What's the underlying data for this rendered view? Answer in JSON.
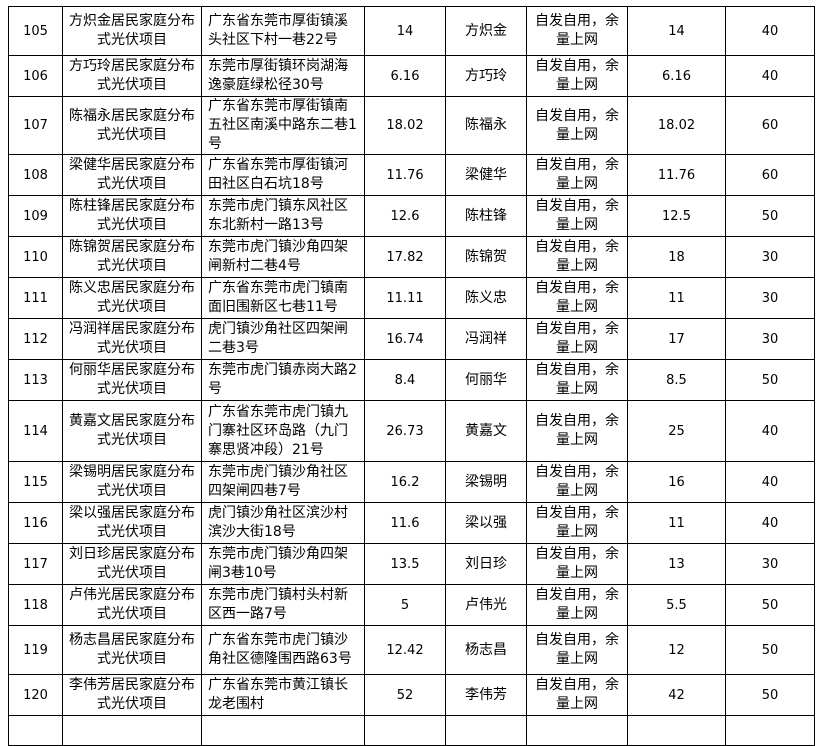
{
  "rows": [
    {
      "no": "105",
      "project": "方炽金居民家庭分布式光伏项目",
      "address": "广东省东莞市厚街镇溪头社区下村一巷22号",
      "capacity": "14",
      "owner": "方炽金",
      "mode": "自发自用，余量上网",
      "capacity2": "14",
      "value": "40"
    },
    {
      "no": "106",
      "project": "方巧玲居民家庭分布式光伏项目",
      "address": "东莞市厚街镇环岗湖海逸豪庭绿松径30号",
      "capacity": "6.16",
      "owner": "方巧玲",
      "mode": "自发自用，余量上网",
      "capacity2": "6.16",
      "value": "40"
    },
    {
      "no": "107",
      "project": "陈福永居民家庭分布式光伏项目",
      "address": "广东省东莞市厚街镇南五社区南溪中路东二巷1号",
      "capacity": "18.02",
      "owner": "陈福永",
      "mode": "自发自用，余量上网",
      "capacity2": "18.02",
      "value": "60"
    },
    {
      "no": "108",
      "project": "梁健华居民家庭分布式光伏项目",
      "address": "广东省东莞市厚街镇河田社区白石坑18号",
      "capacity": "11.76",
      "owner": "梁健华",
      "mode": "自发自用，余量上网",
      "capacity2": "11.76",
      "value": "60"
    },
    {
      "no": "109",
      "project": "陈柱锋居民家庭分布式光伏项目",
      "address": "东莞市虎门镇东风社区东北新村一路13号",
      "capacity": "12.6",
      "owner": "陈柱锋",
      "mode": "自发自用，余量上网",
      "capacity2": "12.5",
      "value": "50"
    },
    {
      "no": "110",
      "project": "陈锦贺居民家庭分布式光伏项目",
      "address": "东莞市虎门镇沙角四架闸新村二巷4号",
      "capacity": "17.82",
      "owner": "陈锦贺",
      "mode": "自发自用，余量上网",
      "capacity2": "18",
      "value": "30"
    },
    {
      "no": "111",
      "project": "陈义忠居民家庭分布式光伏项目",
      "address": "广东省东莞市虎门镇南面旧围新区七巷11号",
      "capacity": "11.11",
      "owner": "陈义忠",
      "mode": "自发自用，余量上网",
      "capacity2": "11",
      "value": "30"
    },
    {
      "no": "112",
      "project": "冯润祥居民家庭分布式光伏项目",
      "address": "虎门镇沙角社区四架闸二巷3号",
      "capacity": "16.74",
      "owner": "冯润祥",
      "mode": "自发自用，余量上网",
      "capacity2": "17",
      "value": "30"
    },
    {
      "no": "113",
      "project": "何丽华居民家庭分布式光伏项目",
      "address": "东莞市虎门镇赤岗大路2号",
      "capacity": "8.4",
      "owner": "何丽华",
      "mode": "自发自用，余量上网",
      "capacity2": "8.5",
      "value": "50"
    },
    {
      "no": "114",
      "project": "黄嘉文居民家庭分布式光伏项目",
      "address": "广东省东莞市虎门镇九门寨社区环岛路（九门寨思贤冲段）21号",
      "capacity": "26.73",
      "owner": "黄嘉文",
      "mode": "自发自用，余量上网",
      "capacity2": "25",
      "value": "40"
    },
    {
      "no": "115",
      "project": "梁锡明居民家庭分布式光伏项目",
      "address": "东莞市虎门镇沙角社区四架闸四巷7号",
      "capacity": "16.2",
      "owner": "梁锡明",
      "mode": "自发自用，余量上网",
      "capacity2": "16",
      "value": "40"
    },
    {
      "no": "116",
      "project": "梁以强居民家庭分布式光伏项目",
      "address": "虎门镇沙角社区滨沙村滨沙大街18号",
      "capacity": "11.6",
      "owner": "梁以强",
      "mode": "自发自用，余量上网",
      "capacity2": "11",
      "value": "40"
    },
    {
      "no": "117",
      "project": "刘日珍居民家庭分布式光伏项目",
      "address": "东莞市虎门镇沙角四架闸3巷10号",
      "capacity": "13.5",
      "owner": "刘日珍",
      "mode": "自发自用，余量上网",
      "capacity2": "13",
      "value": "30"
    },
    {
      "no": "118",
      "project": "卢伟光居民家庭分布式光伏项目",
      "address": "东莞市虎门镇村头村新区西一路7号",
      "capacity": "5",
      "owner": "卢伟光",
      "mode": "自发自用，余量上网",
      "capacity2": "5.5",
      "value": "50"
    },
    {
      "no": "119",
      "project": "杨志昌居民家庭分布式光伏项目",
      "address": "广东省东莞市虎门镇沙角社区德隆围西路63号",
      "capacity": "12.42",
      "owner": "杨志昌",
      "mode": "自发自用，余量上网",
      "capacity2": "12",
      "value": "50"
    },
    {
      "no": "120",
      "project": "李伟芳居民家庭分布式光伏项目",
      "address": "广东省东莞市黄江镇长龙老围村",
      "capacity": "52",
      "owner": "李伟芳",
      "mode": "自发自用，余量上网",
      "capacity2": "42",
      "value": "50"
    }
  ]
}
